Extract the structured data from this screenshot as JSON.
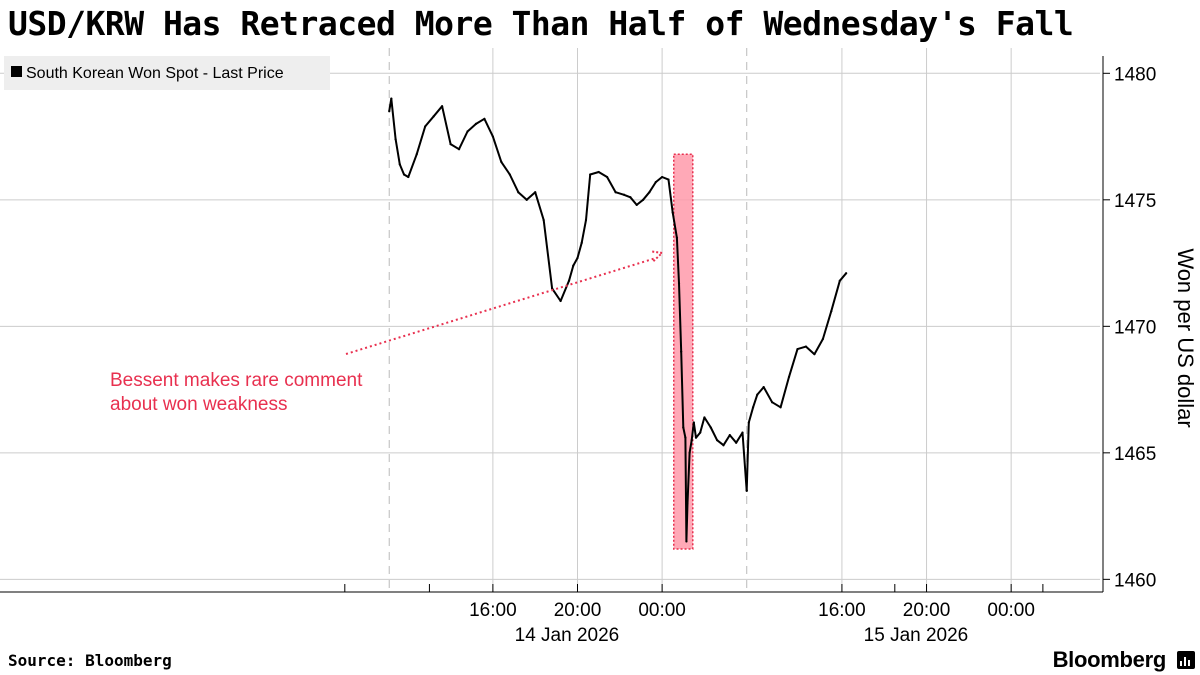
{
  "title": "USD/KRW Has Retraced More Than Half of Wednesday's Fall",
  "footer": {
    "source": "Source: Bloomberg",
    "brand": "Bloomberg"
  },
  "colors": {
    "line": "#000000",
    "annotation": "#e8304f",
    "highlight_fill": "#ff9aaa",
    "grid": "#cccccc"
  },
  "brand_icon": "bloomberg-terminal-icon",
  "chart_data": {
    "type": "line",
    "legend": {
      "label": "South Korean Won Spot - Last Price",
      "position": "top-left"
    },
    "ylabel": "Won per US dollar",
    "y_axis_side": "right",
    "ylim": [
      1459.5,
      1481.0
    ],
    "yticks": [
      1460,
      1465,
      1470,
      1475,
      1480
    ],
    "grid": true,
    "x_axis": {
      "unit": "hours since 14 Jan 2026 00:00 (KST)",
      "xlim": [
        -31.3,
        20.7
      ],
      "time_ticks": [
        {
          "x": -8,
          "label": "16:00"
        },
        {
          "x": -4,
          "label": "20:00"
        },
        {
          "x": 0,
          "label": "00:00"
        },
        {
          "x": 8.5,
          "label": "16:00"
        },
        {
          "x": 12.5,
          "label": "20:00"
        },
        {
          "x": 16.5,
          "label": "00:00"
        }
      ],
      "date_labels": [
        {
          "x": -4.5,
          "label": "14 Jan 2026"
        },
        {
          "x": 12.0,
          "label": "15 Jan 2026"
        }
      ],
      "session_breaks": [
        -12.9,
        4.0
      ]
    },
    "series": [
      {
        "name": "South Korean Won Spot - Last Price",
        "x": [
          -12.9,
          -12.8,
          -12.6,
          -12.4,
          -12.2,
          -12.0,
          -11.6,
          -11.2,
          -10.8,
          -10.4,
          -10.0,
          -9.6,
          -9.2,
          -8.8,
          -8.4,
          -8.0,
          -7.6,
          -7.2,
          -6.8,
          -6.4,
          -6.0,
          -5.6,
          -5.2,
          -4.8,
          -4.4,
          -4.2,
          -4.0,
          -3.8,
          -3.6,
          -3.4,
          -3.0,
          -2.6,
          -2.2,
          -1.8,
          -1.5,
          -1.2,
          -0.9,
          -0.6,
          -0.3,
          0.0,
          0.3,
          0.5,
          0.7,
          0.8,
          0.9,
          1.0,
          1.1,
          1.15,
          1.2,
          1.3,
          1.4,
          1.5,
          1.6,
          1.8,
          2.0,
          2.3,
          2.6,
          2.9,
          3.2,
          3.5,
          3.8,
          4.0
        ],
        "y": [
          1478.5,
          1479.0,
          1477.4,
          1476.4,
          1476.0,
          1475.9,
          1476.8,
          1477.9,
          1478.3,
          1478.7,
          1477.2,
          1477.0,
          1477.7,
          1478.0,
          1478.2,
          1477.5,
          1476.5,
          1476.0,
          1475.3,
          1475.0,
          1475.3,
          1474.2,
          1471.5,
          1471.0,
          1471.8,
          1472.4,
          1472.7,
          1473.3,
          1474.2,
          1476.0,
          1476.1,
          1475.9,
          1475.3,
          1475.2,
          1475.1,
          1474.8,
          1475.0,
          1475.3,
          1475.7,
          1475.9,
          1475.8,
          1474.5,
          1473.5,
          1471.7,
          1469.0,
          1466.0,
          1465.6,
          1461.5,
          1463.0,
          1465.0,
          1465.5,
          1466.2,
          1465.6,
          1465.8,
          1466.4,
          1466.0,
          1465.5,
          1465.3,
          1465.7,
          1465.4,
          1465.8,
          1463.5
        ]
      },
      {
        "name": "South Korean Won Spot - Last Price",
        "x": [
          4.0,
          4.1,
          4.3,
          4.5,
          4.8,
          5.2,
          5.6,
          6.0,
          6.4,
          6.8,
          7.2,
          7.6,
          8.0,
          8.4,
          8.7
        ],
        "y": [
          1463.5,
          1466.2,
          1466.8,
          1467.3,
          1467.6,
          1467.0,
          1466.8,
          1468.0,
          1469.1,
          1469.2,
          1468.9,
          1469.5,
          1470.6,
          1471.8,
          1472.1
        ]
      }
    ],
    "annotations": [
      {
        "text_lines": [
          "Bessent makes rare comment",
          "about won weakness"
        ],
        "arrow_to": {
          "x": 0.0,
          "y": 1472.9
        }
      }
    ],
    "highlight": {
      "x_range": [
        0.55,
        1.45
      ],
      "y_range": [
        1461.2,
        1476.8
      ]
    }
  }
}
